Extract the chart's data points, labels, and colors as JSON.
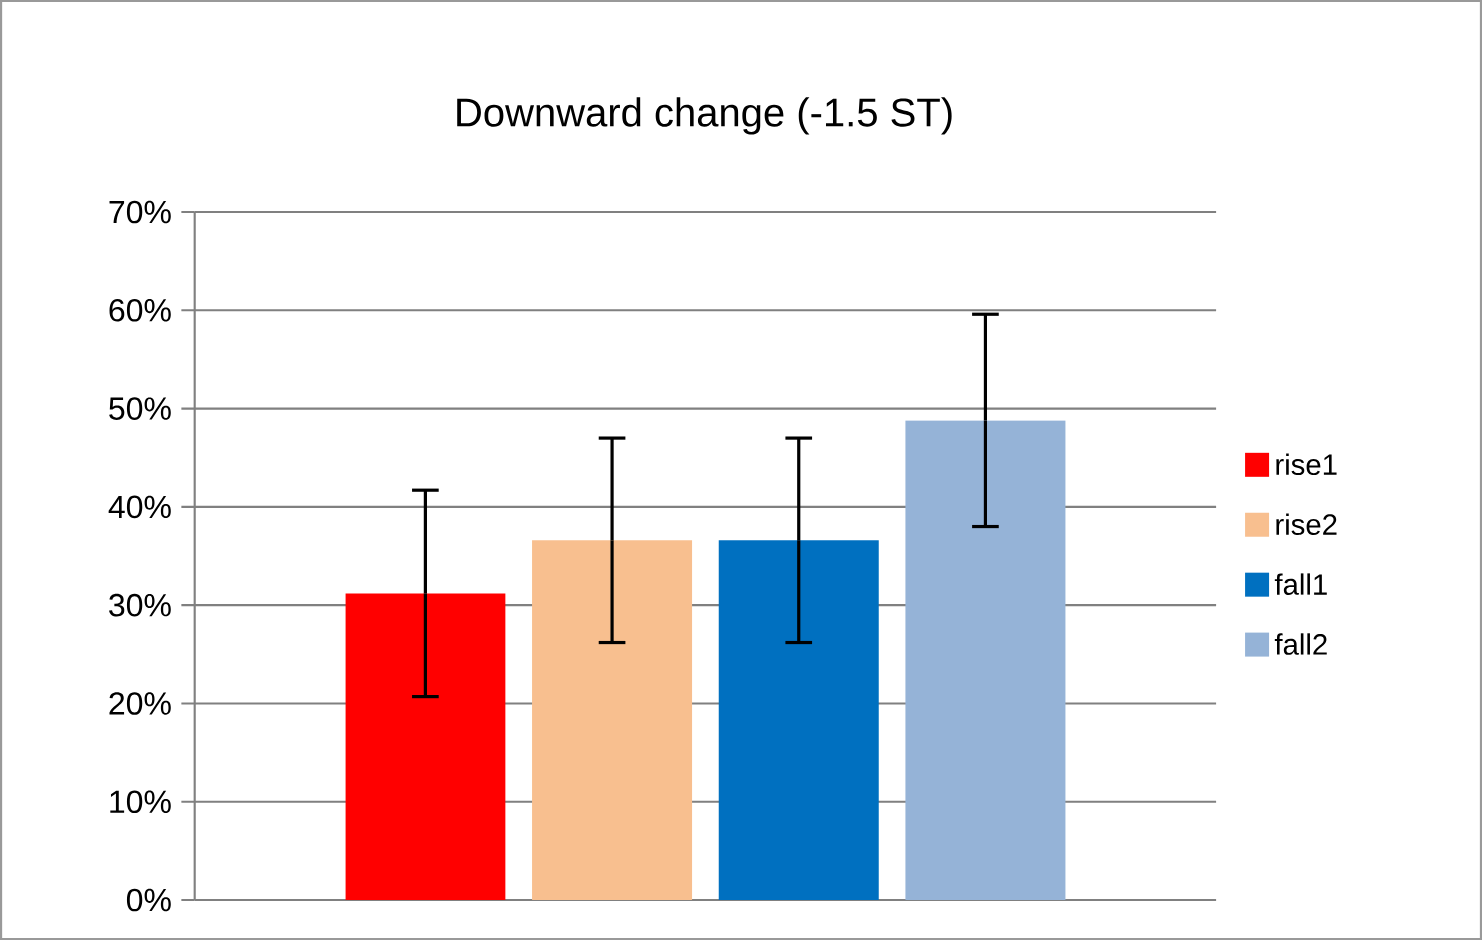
{
  "chart_data": {
    "type": "bar",
    "title": "Downward change (-1.5 ST)",
    "categories": [
      null
    ],
    "series": [
      {
        "name": "rise1",
        "color": "#ff0000",
        "values": [
          31.2
        ],
        "errors": [
          10.5
        ]
      },
      {
        "name": "rise2",
        "color": "#f8bf8f",
        "values": [
          36.6
        ],
        "errors": [
          10.4
        ]
      },
      {
        "name": "fall1",
        "color": "#0070c0",
        "values": [
          36.6
        ],
        "errors": [
          10.4
        ]
      },
      {
        "name": "fall2",
        "color": "#95b3d7",
        "values": [
          48.8
        ],
        "errors": [
          10.8
        ]
      }
    ],
    "ylim": [
      0,
      70
    ],
    "yticks": [
      {
        "value": 0,
        "label": "0%"
      },
      {
        "value": 10,
        "label": "10%"
      },
      {
        "value": 20,
        "label": "20%"
      },
      {
        "value": 30,
        "label": "30%"
      },
      {
        "value": 40,
        "label": "40%"
      },
      {
        "value": 50,
        "label": "50%"
      },
      {
        "value": 60,
        "label": "60%"
      },
      {
        "value": 70,
        "label": "70%"
      }
    ],
    "grid": "y",
    "legend": "right"
  }
}
